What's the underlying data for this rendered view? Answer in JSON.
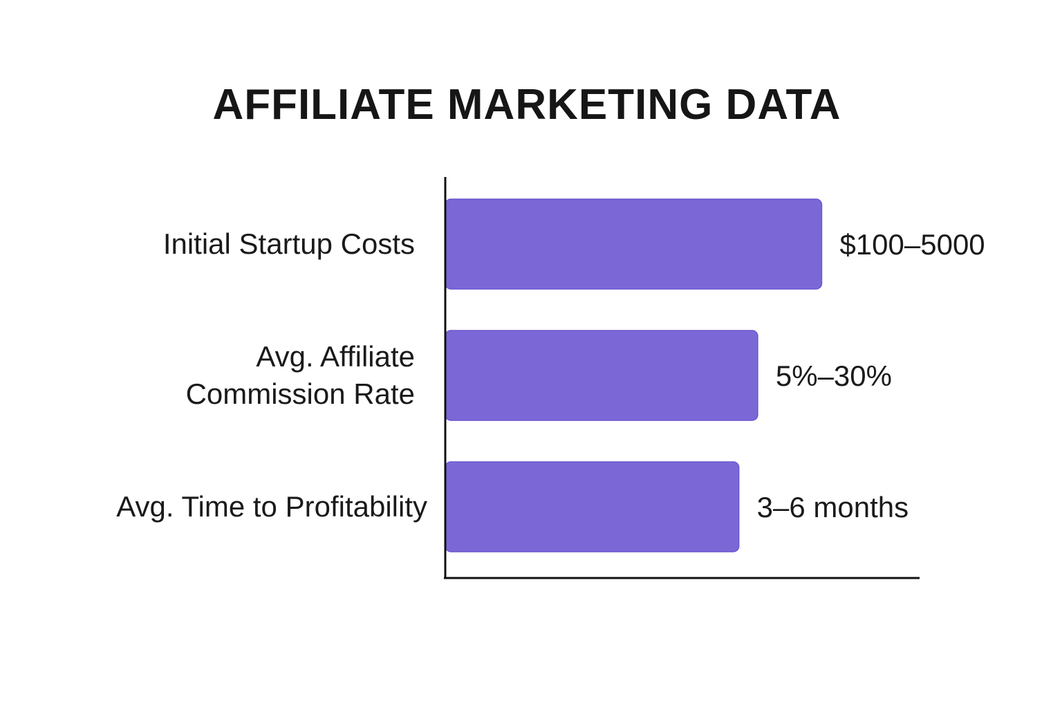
{
  "chart_data": {
    "type": "bar",
    "orientation": "horizontal",
    "title": "AFFILIATE MARKETING DATA",
    "categories": [
      [
        "Initial Startup Costs"
      ],
      [
        "Avg. Affiliate",
        "Commission Rate"
      ],
      [
        "Avg. Time to Profitability"
      ]
    ],
    "value_labels": [
      "$100–5000",
      "5%–30%",
      "3–6 months"
    ],
    "values": [
      100,
      83,
      78
    ],
    "xlim": [
      0,
      126
    ],
    "xlabel": "",
    "ylabel": "",
    "grid": false,
    "legend": "none",
    "colors": {
      "bar": "#7b68d6",
      "bar_border": "#6a56cf",
      "axis": "#111111",
      "text": "#1a1a1a"
    }
  }
}
